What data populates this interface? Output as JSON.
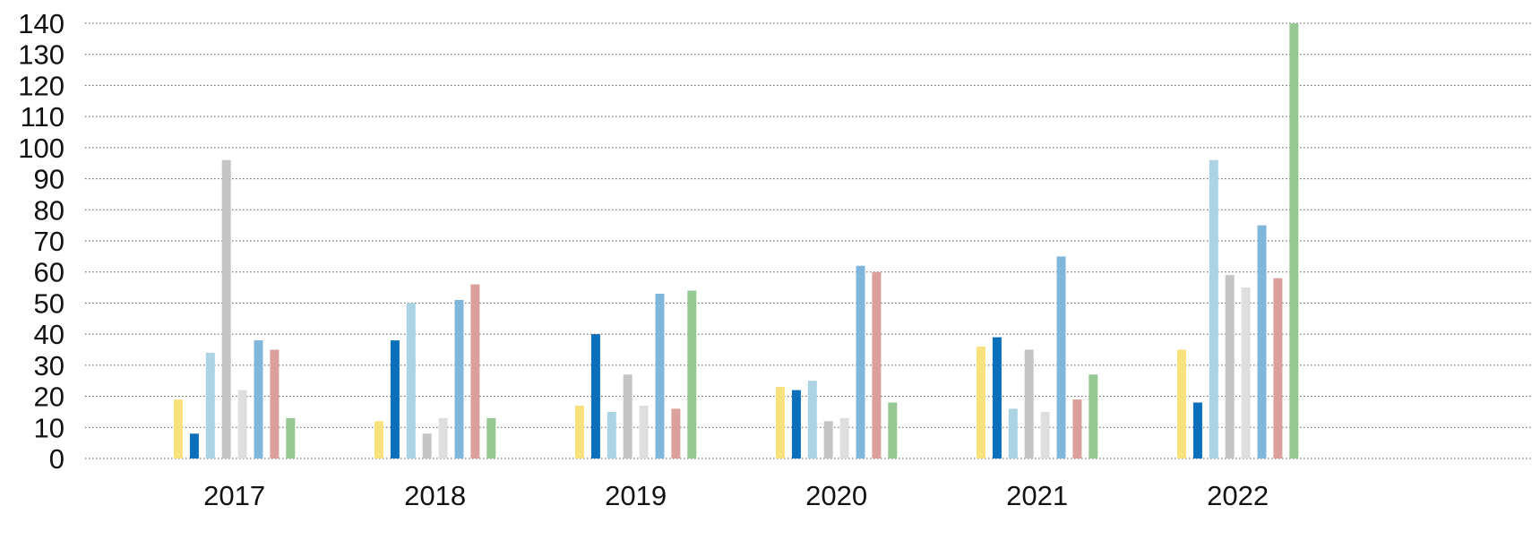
{
  "chart_data": {
    "type": "bar",
    "categories": [
      "2017",
      "2018",
      "2019",
      "2020",
      "2021",
      "2022"
    ],
    "ylim": [
      0,
      140
    ],
    "yticks": [
      0,
      10,
      20,
      30,
      40,
      50,
      60,
      70,
      80,
      90,
      100,
      110,
      120,
      130,
      140
    ],
    "grid": true,
    "title": "",
    "xlabel": "",
    "ylabel": "",
    "series": [
      {
        "color": "#f9e27d",
        "values": [
          19,
          12,
          17,
          23,
          36,
          35
        ]
      },
      {
        "color": "#0b6fbb",
        "values": [
          8,
          38,
          40,
          22,
          39,
          18
        ]
      },
      {
        "color": "#acd3e3",
        "values": [
          34,
          50,
          15,
          25,
          16,
          96
        ]
      },
      {
        "color": "#c4c4c4",
        "values": [
          96,
          8,
          27,
          12,
          35,
          59
        ]
      },
      {
        "color": "#dedede",
        "values": [
          22,
          13,
          17,
          13,
          15,
          55
        ]
      },
      {
        "color": "#80b5dc",
        "values": [
          38,
          51,
          53,
          62,
          65,
          75
        ]
      },
      {
        "color": "#dba09b",
        "values": [
          35,
          56,
          16,
          60,
          19,
          58
        ]
      },
      {
        "color": "#96c893",
        "values": [
          13,
          13,
          54,
          18,
          27,
          140
        ]
      }
    ]
  }
}
